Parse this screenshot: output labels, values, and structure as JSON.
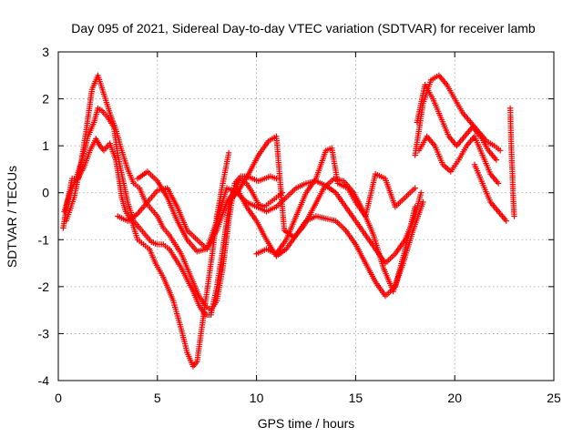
{
  "chart_data": {
    "type": "scatter",
    "title": "Day 095 of 2021, Sidereal Day-to-day VTEC variation (SDTVAR) for receiver lamb",
    "xlabel": "GPS time / hours",
    "ylabel": "SDTVAR / TECUs",
    "xlim": [
      0,
      25
    ],
    "ylim": [
      -4,
      3
    ],
    "xticks": [
      "0",
      "5",
      "10",
      "15",
      "20",
      "25"
    ],
    "yticks": [
      "-4",
      "-3",
      "-2",
      "-1",
      "0",
      "1",
      "2",
      "3"
    ],
    "grid": true,
    "marker": "plus",
    "color": "#ff0000",
    "series": [
      {
        "x": [
          0.25,
          0.45,
          0.7,
          1.0,
          1.3,
          1.6,
          1.9,
          2.1,
          2.3,
          2.6,
          2.9,
          3.1,
          3.2,
          3.4,
          3.7,
          4.0,
          4.3,
          4.6,
          4.9,
          5.3,
          5.8,
          6.2,
          6.5,
          6.8,
          7.0,
          7.2,
          7.4,
          7.6,
          7.8,
          8.0,
          8.3,
          8.6
        ],
        "y": [
          -0.75,
          -0.2,
          0.3,
          0.3,
          0.55,
          0.9,
          1.15,
          1.0,
          0.9,
          1.05,
          0.7,
          0.2,
          -0.1,
          -0.4,
          -0.6,
          -1.0,
          -1.1,
          -1.2,
          -1.5,
          -1.8,
          -2.3,
          -2.9,
          -3.4,
          -3.7,
          -3.6,
          -3.0,
          -2.4,
          -1.8,
          -1.2,
          -0.5,
          0.2,
          0.85
        ]
      },
      {
        "x": [
          0.3,
          0.6,
          0.9,
          1.2,
          1.5,
          1.8,
          2.0,
          2.2,
          2.5,
          2.8,
          3.0,
          3.3,
          3.5,
          3.8,
          4.1,
          4.4,
          4.7,
          5.0,
          5.3,
          5.6,
          5.9,
          6.2,
          6.5,
          6.8,
          7.1,
          7.4,
          7.7,
          8.0,
          8.3,
          8.6,
          8.9,
          9.2,
          9.5,
          9.8,
          10.1,
          10.4,
          10.7,
          11.0,
          11.3
        ],
        "y": [
          -0.4,
          0.0,
          0.3,
          0.7,
          1.2,
          1.5,
          1.8,
          1.75,
          1.6,
          1.4,
          0.8,
          0.2,
          -0.2,
          -0.6,
          -0.75,
          -0.9,
          -1.05,
          -1.1,
          -1.1,
          -1.2,
          -1.4,
          -1.6,
          -1.85,
          -2.1,
          -2.4,
          -2.6,
          -2.6,
          -2.0,
          -1.2,
          -0.3,
          0.1,
          0.3,
          0.2,
          0.0,
          -0.25,
          -0.3,
          -0.2,
          -0.1,
          0.0
        ]
      },
      {
        "x": [
          0.4,
          0.8,
          1.1,
          1.4,
          1.7,
          2.0,
          2.3,
          2.6,
          2.9,
          3.2,
          3.5,
          3.8,
          4.1,
          4.4,
          4.7,
          5.0,
          5.3,
          5.6,
          5.9,
          6.2,
          6.5,
          6.8,
          7.1,
          7.4,
          7.7,
          8.0,
          8.3,
          8.6,
          8.9,
          9.2,
          9.5,
          9.8,
          10.1,
          10.4,
          10.7,
          11.0
        ],
        "y": [
          -0.6,
          -0.1,
          0.5,
          1.3,
          2.2,
          2.5,
          2.1,
          1.7,
          1.35,
          0.9,
          0.5,
          0.2,
          0.1,
          -0.2,
          -0.35,
          -0.5,
          -0.75,
          -0.9,
          -1.1,
          -1.3,
          -1.6,
          -1.9,
          -2.2,
          -2.4,
          -2.5,
          -2.3,
          -1.6,
          -0.6,
          0.2,
          0.35,
          0.35,
          0.3,
          0.25,
          0.3,
          0.35,
          0.3
        ]
      },
      {
        "x": [
          3.0,
          3.5,
          4.0,
          4.5,
          5.0,
          5.5,
          6.0,
          6.5,
          7.0,
          7.5,
          8.0,
          8.5,
          9.0,
          9.5,
          10.0,
          10.5,
          11.0,
          11.5,
          12.0,
          12.5,
          13.0,
          13.5,
          14.0,
          14.5,
          15.0,
          15.5,
          16.0,
          16.5,
          17.0,
          17.5,
          18.0
        ],
        "y": [
          -0.5,
          -0.6,
          -0.45,
          -0.2,
          0.05,
          0.1,
          -0.3,
          -0.8,
          -1.0,
          -1.2,
          -0.8,
          -0.2,
          0.1,
          -0.3,
          -0.6,
          -1.0,
          -1.35,
          -1.2,
          -0.9,
          -0.6,
          -0.5,
          -0.55,
          -0.6,
          -0.8,
          -1.1,
          -1.5,
          -1.9,
          -2.2,
          -2.0,
          -1.2,
          -0.3
        ]
      },
      {
        "x": [
          4.0,
          4.5,
          5.0,
          5.5,
          6.0,
          6.5,
          7.0,
          7.5,
          8.0,
          8.5,
          9.0,
          9.5,
          10.0,
          10.5,
          11.0,
          11.5,
          12.0,
          12.5,
          13.0,
          13.5,
          14.0,
          14.5,
          15.0,
          15.5,
          16.0,
          16.5,
          17.0,
          17.5,
          18.0,
          18.3
        ],
        "y": [
          0.3,
          0.45,
          0.25,
          -0.1,
          -0.6,
          -1.0,
          -1.25,
          -1.2,
          -0.6,
          0.1,
          0.0,
          -0.2,
          -0.3,
          -0.4,
          -0.3,
          -0.1,
          0.1,
          0.2,
          0.25,
          0.15,
          0.0,
          -0.3,
          -0.6,
          -0.9,
          -1.2,
          -1.5,
          -1.3,
          -1.0,
          -0.5,
          0.0
        ]
      },
      {
        "x": [
          8.6,
          9.1,
          9.6,
          10.1,
          10.6,
          11.0,
          11.4,
          11.9,
          12.4,
          12.9,
          13.4,
          13.9,
          14.4,
          14.9,
          15.4,
          15.9,
          16.4,
          16.9,
          17.4,
          17.9,
          18.4
        ],
        "y": [
          -0.2,
          0.05,
          0.4,
          0.8,
          1.1,
          1.2,
          -0.8,
          -0.95,
          -0.7,
          -0.3,
          0.1,
          0.3,
          0.25,
          0.0,
          -0.4,
          -0.9,
          -1.6,
          -2.1,
          -1.5,
          -0.8,
          -0.2
        ]
      },
      {
        "x": [
          10.0,
          10.5,
          11.0,
          11.5,
          12.0,
          12.5,
          13.0,
          13.5,
          13.8,
          14.1,
          14.6,
          15.0,
          15.5,
          16.0,
          16.5,
          17.0,
          17.5,
          18.0
        ],
        "y": [
          -1.3,
          -1.2,
          -1.3,
          -1.0,
          -0.5,
          0.0,
          0.3,
          0.9,
          0.95,
          0.2,
          0.1,
          -0.2,
          -0.5,
          0.4,
          0.3,
          -0.3,
          -0.1,
          0.1
        ]
      },
      {
        "x": [
          18.0,
          18.4,
          18.8,
          19.2,
          19.6,
          20.0,
          20.4,
          20.8,
          21.2,
          21.6,
          22.0,
          22.3
        ],
        "y": [
          0.8,
          1.9,
          2.4,
          2.5,
          2.3,
          2.0,
          1.7,
          1.5,
          1.3,
          1.1,
          1.0,
          0.9
        ]
      },
      {
        "x": [
          18.1,
          18.5,
          18.9,
          19.3,
          19.7,
          20.1,
          20.5,
          20.9,
          21.3,
          21.7,
          22.1
        ],
        "y": [
          1.5,
          2.3,
          2.0,
          1.6,
          1.2,
          1.0,
          1.2,
          1.4,
          1.2,
          0.9,
          0.7
        ]
      },
      {
        "x": [
          18.2,
          18.6,
          19.0,
          19.4,
          19.8,
          20.2,
          20.6,
          21.0,
          21.4,
          21.8,
          22.2
        ],
        "y": [
          0.9,
          1.2,
          1.0,
          0.6,
          0.45,
          0.7,
          1.0,
          1.2,
          0.8,
          0.4,
          0.2
        ]
      },
      {
        "x": [
          21.0,
          21.4,
          21.8,
          22.2,
          22.6
        ],
        "y": [
          0.6,
          0.2,
          -0.2,
          -0.4,
          -0.6
        ]
      },
      {
        "x": [
          22.8,
          22.85,
          22.9,
          22.95,
          23.0
        ],
        "y": [
          1.8,
          1.0,
          0.5,
          -0.1,
          -0.5
        ]
      }
    ]
  }
}
